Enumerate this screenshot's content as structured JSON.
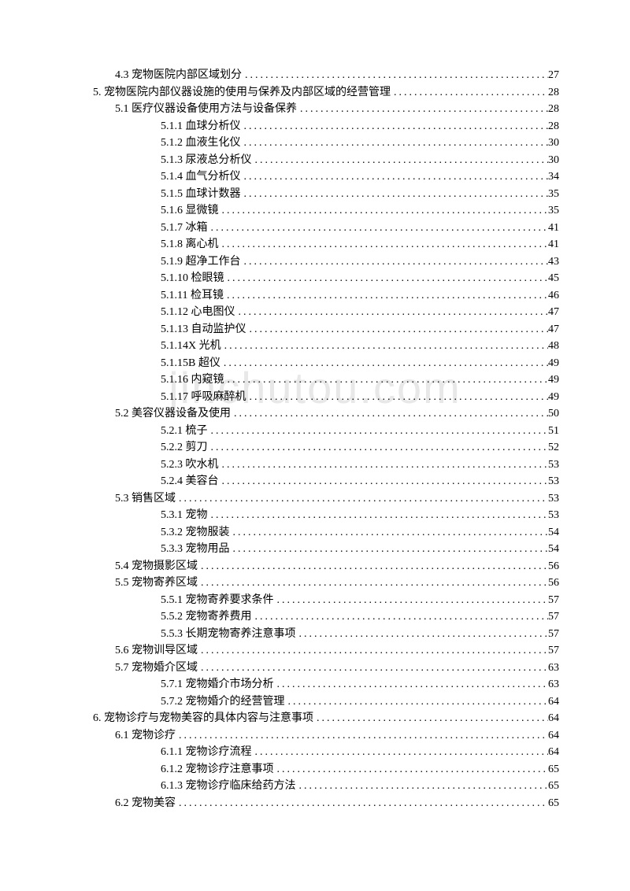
{
  "watermark": "jinchutou.com",
  "dots_fill": "..................................................................................................",
  "toc": [
    {
      "indent": 1,
      "label": "4.3 宠物医院内部区域划分",
      "page": "27"
    },
    {
      "indent": 2,
      "label": "5. 宠物医院内部仪器设施的使用与保养及内部区域的经营管理",
      "page": "28"
    },
    {
      "indent": 3,
      "label": "5.1 医疗仪器设备使用方法与设备保养",
      "page": "28"
    },
    {
      "indent": 4,
      "label": "5.1.1 血球分析仪",
      "page": "28"
    },
    {
      "indent": 4,
      "label": "5.1.2 血液生化仪",
      "page": "30"
    },
    {
      "indent": 4,
      "label": "5.1.3 尿液总分析仪",
      "page": "30"
    },
    {
      "indent": 4,
      "label": "5.1.4 血气分析仪",
      "page": "34"
    },
    {
      "indent": 4,
      "label": "5.1.5 血球计数器",
      "page": "35"
    },
    {
      "indent": 4,
      "label": "5.1.6 显微镜",
      "page": "35"
    },
    {
      "indent": 4,
      "label": "5.1.7 冰箱",
      "page": "41"
    },
    {
      "indent": 4,
      "label": "5.1.8 离心机",
      "page": "41"
    },
    {
      "indent": 4,
      "label": "5.1.9 超净工作台",
      "page": "43"
    },
    {
      "indent": 4,
      "label": "5.1.10 检眼镜",
      "page": "45"
    },
    {
      "indent": 4,
      "label": "5.1.11 检耳镜",
      "page": "46"
    },
    {
      "indent": 4,
      "label": "5.1.12 心电图仪",
      "page": "47"
    },
    {
      "indent": 4,
      "label": "5.1.13 自动监护仪",
      "page": "47"
    },
    {
      "indent": 4,
      "label": "5.1.14X 光机",
      "page": "48"
    },
    {
      "indent": 4,
      "label": "5.1.15B 超仪",
      "page": "49"
    },
    {
      "indent": 4,
      "label": "5.1.16 内窥镜",
      "page": "49"
    },
    {
      "indent": 4,
      "label": "5.1.17 呼吸麻醉机",
      "page": "49"
    },
    {
      "indent": 3,
      "label": "5.2 美容仪器设备及使用",
      "page": "50"
    },
    {
      "indent": 4,
      "label": "5.2.1 梳子",
      "page": "51"
    },
    {
      "indent": 4,
      "label": "5.2.2 剪刀",
      "page": "52"
    },
    {
      "indent": 4,
      "label": "5.2.3 吹水机",
      "page": "53"
    },
    {
      "indent": 4,
      "label": "5.2.4 美容台",
      "page": "53"
    },
    {
      "indent": 3,
      "label": "5.3 销售区域",
      "page": "53"
    },
    {
      "indent": 4,
      "label": "5.3.1 宠物",
      "page": "53"
    },
    {
      "indent": 4,
      "label": "5.3.2 宠物服装",
      "page": "54"
    },
    {
      "indent": 4,
      "label": "5.3.3 宠物用品",
      "page": "54"
    },
    {
      "indent": 3,
      "label": "5.4 宠物摄影区域",
      "page": "56"
    },
    {
      "indent": 3,
      "label": "5.5 宠物寄养区域",
      "page": "56"
    },
    {
      "indent": 4,
      "label": "5.5.1 宠物寄养要求条件",
      "page": "57"
    },
    {
      "indent": 4,
      "label": "5.5.2 宠物寄养费用",
      "page": "57"
    },
    {
      "indent": 4,
      "label": "5.5.3 长期宠物寄养注意事项",
      "page": "57"
    },
    {
      "indent": 3,
      "label": "5.6 宠物训导区域",
      "page": "57"
    },
    {
      "indent": 3,
      "label": "5.7 宠物婚介区域",
      "page": "63"
    },
    {
      "indent": 4,
      "label": "5.7.1 宠物婚介市场分析",
      "page": "63"
    },
    {
      "indent": 4,
      "label": "5.7.2 宠物婚介的经营管理",
      "page": "64"
    },
    {
      "indent": 2,
      "label": "6. 宠物诊疗与宠物美容的具体内容与注意事项",
      "page": "64"
    },
    {
      "indent": 3,
      "label": "6.1 宠物诊疗",
      "page": "64"
    },
    {
      "indent": 4,
      "label": "6.1.1 宠物诊疗流程",
      "page": "64"
    },
    {
      "indent": 4,
      "label": "6.1.2 宠物诊疗注意事项",
      "page": "65"
    },
    {
      "indent": 4,
      "label": "6.1.3 宠物诊疗临床给药方法",
      "page": "65"
    },
    {
      "indent": 3,
      "label": "6.2 宠物美容",
      "page": "65"
    }
  ]
}
